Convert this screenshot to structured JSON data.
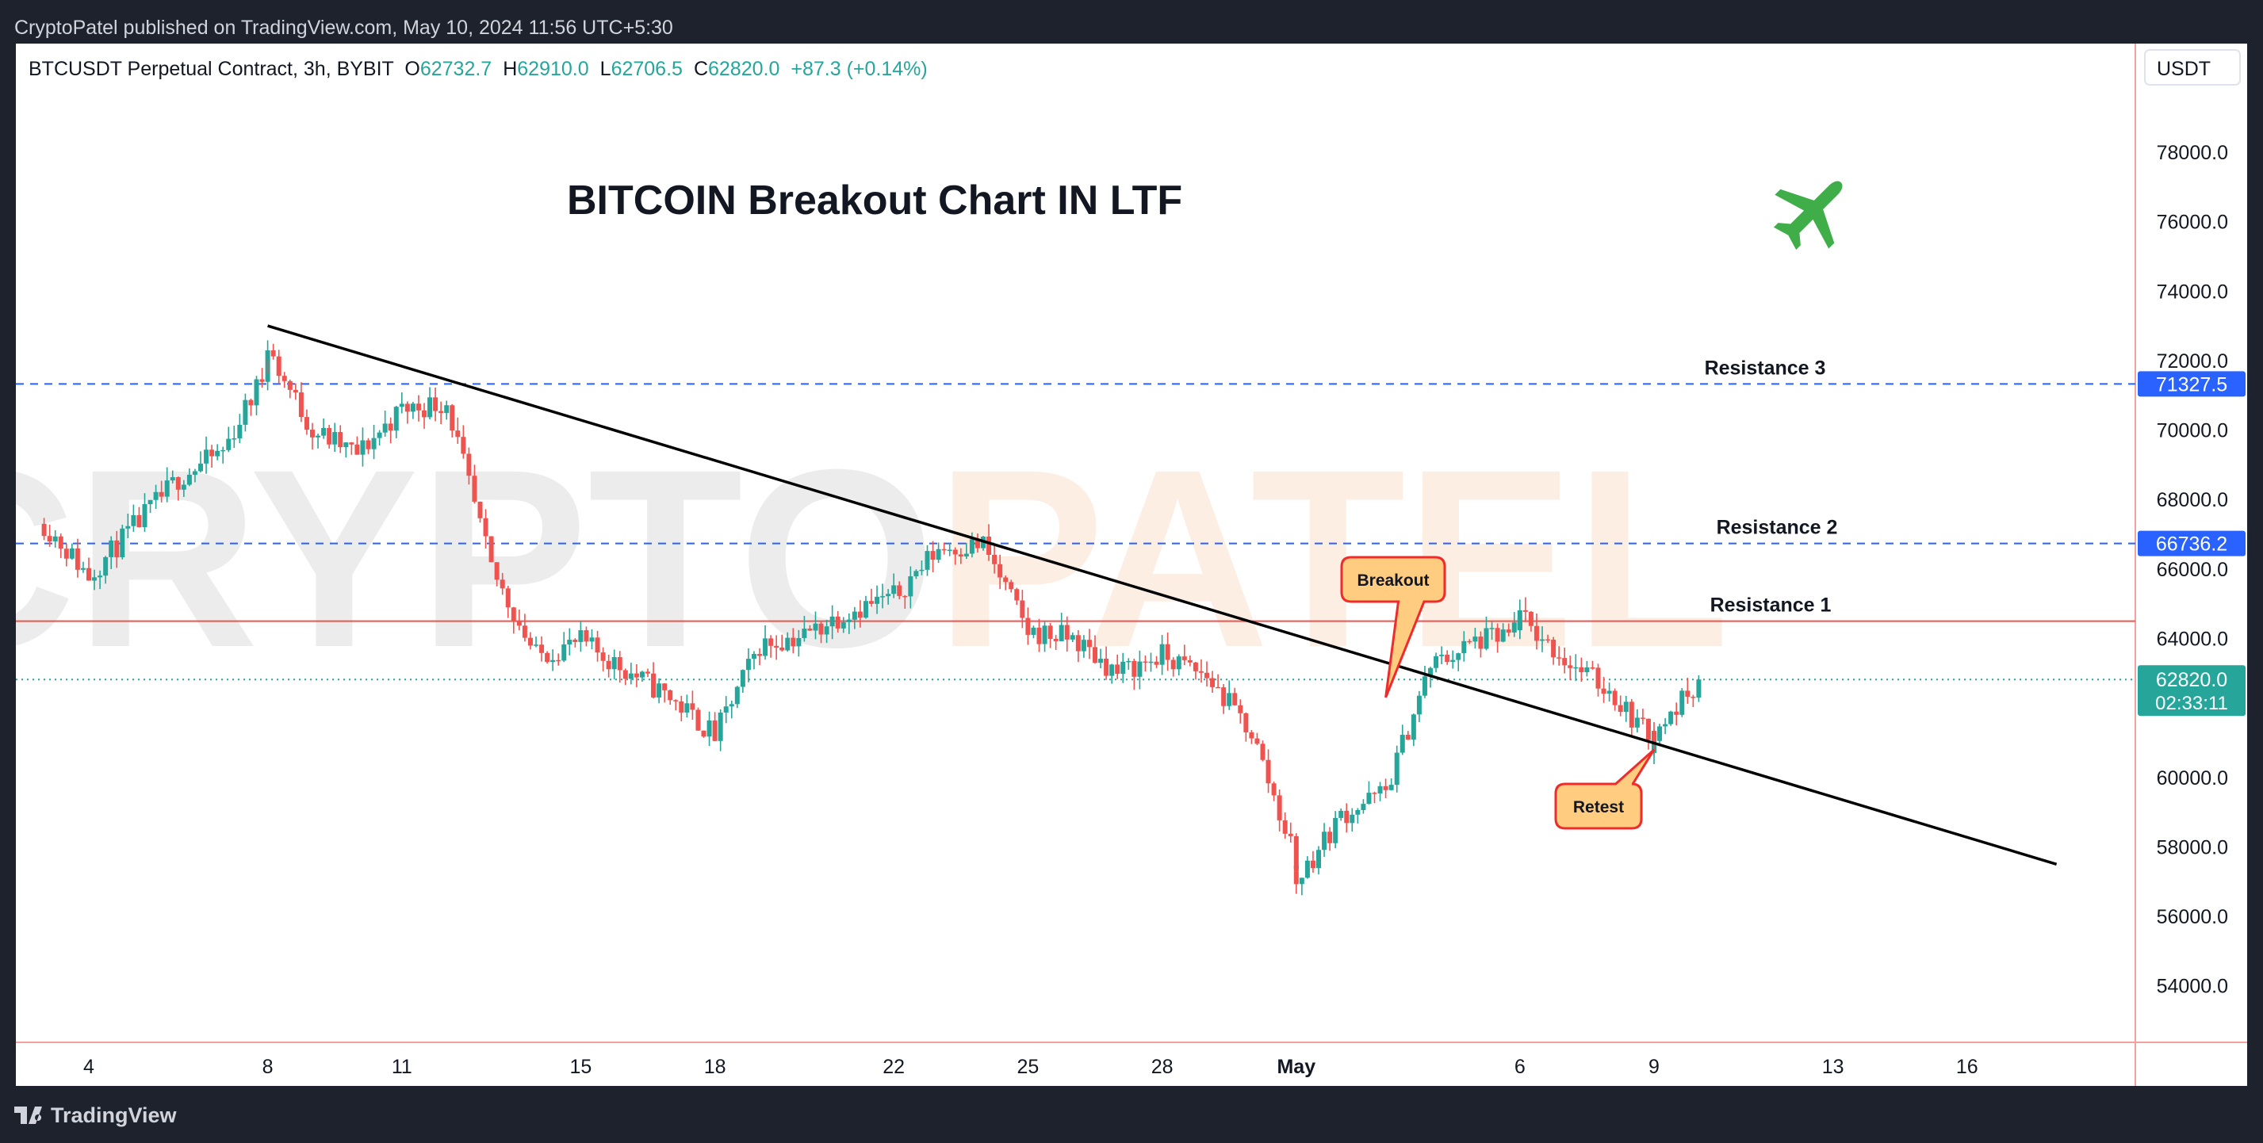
{
  "header": {
    "published": "CryptoPatel published on TradingView.com, May 10, 2024 11:56 UTC+5:30"
  },
  "footer": {
    "brand": "TradingView"
  },
  "legend": {
    "symbol": "BTCUSDT Perpetual Contract, 3h, BYBIT",
    "o_label": "O",
    "o_value": "62732.7",
    "h_label": "H",
    "h_value": "62910.0",
    "l_label": "L",
    "l_value": "62706.5",
    "c_label": "C",
    "c_value": "62820.0",
    "change": "+87.3 (+0.14%)"
  },
  "currency": "USDT",
  "colors": {
    "up": "#26a69a",
    "down": "#ef5350",
    "resistance": "#2962ff",
    "trendline": "#000000",
    "callout_fill": "#ffcc80",
    "callout_border": "#ef2b2b",
    "plane": "#3fae49"
  },
  "chart_data": {
    "type": "candlestick",
    "title": "BITCOIN Breakout Chart IN LTF",
    "timeframe": "3h",
    "x_ticks": [
      {
        "label": "4",
        "date": "2024-04-04"
      },
      {
        "label": "8",
        "date": "2024-04-08"
      },
      {
        "label": "11",
        "date": "2024-04-11"
      },
      {
        "label": "15",
        "date": "2024-04-15"
      },
      {
        "label": "18",
        "date": "2024-04-18"
      },
      {
        "label": "22",
        "date": "2024-04-22"
      },
      {
        "label": "25",
        "date": "2024-04-25"
      },
      {
        "label": "28",
        "date": "2024-04-28"
      },
      {
        "label": "May",
        "date": "2024-05-01"
      },
      {
        "label": "6",
        "date": "2024-05-06"
      },
      {
        "label": "9",
        "date": "2024-05-09"
      },
      {
        "label": "13",
        "date": "2024-05-13"
      },
      {
        "label": "16",
        "date": "2024-05-16"
      }
    ],
    "y_ticks": [
      "78000.0",
      "76000.0",
      "74000.0",
      "72000.0",
      "70000.0",
      "68000.0",
      "66000.0",
      "64000.0",
      "62000.0",
      "60000.0",
      "58000.0",
      "56000.0",
      "54000.0"
    ],
    "y_range": [
      52300,
      80800
    ],
    "anchors": [
      {
        "date": "2024-04-03",
        "close": 67300
      },
      {
        "date": "2024-04-04",
        "close": 65800
      },
      {
        "date": "2024-04-05",
        "close": 67200
      },
      {
        "date": "2024-04-06",
        "close": 68600
      },
      {
        "date": "2024-04-07",
        "close": 69400
      },
      {
        "date": "2024-04-08",
        "close": 71800
      },
      {
        "date": "2024-04-08",
        "close": 72300
      },
      {
        "date": "2024-04-09",
        "close": 70000
      },
      {
        "date": "2024-04-10",
        "close": 69300
      },
      {
        "date": "2024-04-11",
        "close": 70600
      },
      {
        "date": "2024-04-12",
        "close": 70800
      },
      {
        "date": "2024-04-13",
        "close": 66000
      },
      {
        "date": "2024-04-14",
        "close": 63500
      },
      {
        "date": "2024-04-15",
        "close": 63900
      },
      {
        "date": "2024-04-16",
        "close": 63100
      },
      {
        "date": "2024-04-17",
        "close": 62300
      },
      {
        "date": "2024-04-18",
        "close": 61200
      },
      {
        "date": "2024-04-19",
        "close": 63800
      },
      {
        "date": "2024-04-20",
        "close": 64100
      },
      {
        "date": "2024-04-21",
        "close": 64800
      },
      {
        "date": "2024-04-22",
        "close": 65200
      },
      {
        "date": "2024-04-23",
        "close": 66600
      },
      {
        "date": "2024-04-24",
        "close": 66700
      },
      {
        "date": "2024-04-25",
        "close": 64200
      },
      {
        "date": "2024-04-26",
        "close": 64000
      },
      {
        "date": "2024-04-27",
        "close": 63000
      },
      {
        "date": "2024-04-28",
        "close": 63500
      },
      {
        "date": "2024-04-29",
        "close": 62900
      },
      {
        "date": "2024-04-30",
        "close": 61300
      },
      {
        "date": "2024-05-01",
        "close": 57600
      },
      {
        "date": "2024-05-01",
        "close": 57000
      },
      {
        "date": "2024-05-02",
        "close": 58900
      },
      {
        "date": "2024-05-03",
        "close": 59600
      },
      {
        "date": "2024-05-04",
        "close": 63200
      },
      {
        "date": "2024-05-05",
        "close": 63900
      },
      {
        "date": "2024-05-06",
        "close": 64200
      },
      {
        "date": "2024-05-06",
        "close": 64600
      },
      {
        "date": "2024-05-07",
        "close": 63400
      },
      {
        "date": "2024-05-08",
        "close": 62500
      },
      {
        "date": "2024-05-09",
        "close": 61000
      },
      {
        "date": "2024-05-09",
        "close": 61200
      },
      {
        "date": "2024-05-10",
        "close": 62820
      }
    ],
    "levels": [
      {
        "name": "Resistance 3",
        "value": 71327.5,
        "label": "71327.5",
        "style": "dashed",
        "color": "#2962ff"
      },
      {
        "name": "Resistance 2",
        "value": 66736.2,
        "label": "66736.2",
        "style": "dashed",
        "color": "#2962ff"
      },
      {
        "name": "Resistance 1",
        "value": 64500,
        "style": "solid",
        "color": "#ef5350"
      }
    ],
    "last_price": {
      "value": 62820.0,
      "label": "62820.0",
      "countdown": "02:33:11"
    },
    "trendline": {
      "start": {
        "date": "2024-04-08",
        "value": 73000
      },
      "end": {
        "date": "2024-05-18",
        "value": 57500
      }
    },
    "annotations": [
      {
        "text": "Breakout",
        "date": "2024-05-03",
        "value": 62300
      },
      {
        "text": "Retest",
        "date": "2024-05-09",
        "value": 60800
      }
    ],
    "watermark": {
      "text1": "CRYPTO",
      "text2": "PATEL"
    }
  }
}
